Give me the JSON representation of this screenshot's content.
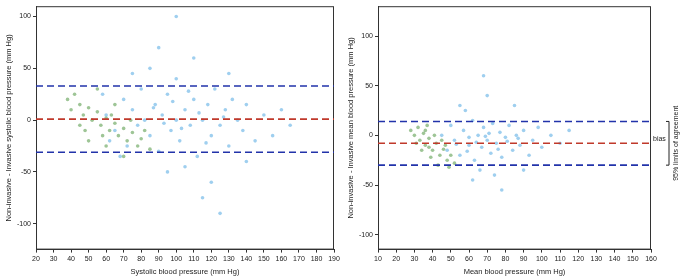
{
  "chart_data": [
    {
      "type": "scatter",
      "x_label": "Systolic blood pressure (mm Hg)",
      "y_label": "Non-invasive - Invasive systolic blood pressure (mm Hg)",
      "xlim": [
        20,
        190
      ],
      "xticks": [
        20,
        30,
        40,
        50,
        60,
        70,
        80,
        90,
        100,
        110,
        120,
        130,
        140,
        150,
        160,
        170,
        180,
        190
      ],
      "ylim": [
        -125,
        110
      ],
      "yticks": [
        -100,
        -50,
        0,
        50,
        100
      ],
      "grid": false,
      "marker": "circle",
      "series": [
        {
          "color": "#3fa0e0",
          "x": [
            60,
            65,
            70,
            72,
            75,
            78,
            80,
            82,
            85,
            88,
            90,
            92,
            95,
            97,
            100,
            100,
            102,
            105,
            108,
            110,
            112,
            115,
            118,
            120,
            122,
            125,
            128,
            130,
            132,
            135,
            138,
            140,
            145,
            150,
            155,
            160,
            165,
            85,
            95,
            110,
            120,
            75,
            130,
            105,
            90,
            115,
            140,
            100,
            125,
            68,
            58,
            62,
            98,
            103,
            113,
            93,
            87,
            117,
            127,
            107
          ],
          "values": [
            5,
            -10,
            20,
            -25,
            10,
            -5,
            30,
            0,
            -15,
            15,
            -30,
            5,
            25,
            -10,
            0,
            40,
            -20,
            10,
            -5,
            20,
            -35,
            0,
            15,
            -15,
            30,
            -5,
            10,
            -25,
            20,
            0,
            -10,
            15,
            -20,
            5,
            -15,
            10,
            -5,
            50,
            -50,
            60,
            -60,
            45,
            45,
            -45,
            70,
            -75,
            -40,
            100,
            -90,
            -35,
            25,
            -20,
            18,
            -8,
            7,
            -3,
            12,
            -22,
            3,
            28
          ]
        },
        {
          "color": "#3d8b2e",
          "x": [
            38,
            40,
            42,
            45,
            47,
            50,
            52,
            55,
            57,
            60,
            62,
            65,
            67,
            70,
            72,
            75,
            78,
            80,
            85,
            48,
            55,
            60,
            65,
            70,
            50,
            58,
            63,
            45,
            74,
            82
          ],
          "values": [
            20,
            10,
            25,
            15,
            5,
            12,
            0,
            8,
            -5,
            2,
            -10,
            -3,
            -15,
            -8,
            -20,
            -12,
            -25,
            -18,
            -28,
            -10,
            30,
            -25,
            15,
            -35,
            -20,
            -15,
            5,
            -5,
            0,
            -10
          ]
        }
      ],
      "reference_lines": [
        {
          "value": 33,
          "color": "#2233aa",
          "line_style": "dashed"
        },
        {
          "value": 1,
          "color": "#c0392b",
          "line_style": "dashed"
        },
        {
          "value": -31,
          "color": "#2233aa",
          "line_style": "dashed"
        }
      ]
    },
    {
      "type": "scatter",
      "x_label": "Mean blood pressure (mm Hg)",
      "y_label": "Non-invasive - Invasive mean blood pressure (mm Hg)",
      "xlim": [
        10,
        160
      ],
      "xticks": [
        10,
        20,
        30,
        40,
        50,
        60,
        70,
        80,
        90,
        100,
        110,
        120,
        130,
        140,
        150,
        160
      ],
      "ylim": [
        -115,
        130
      ],
      "yticks": [
        -100,
        -50,
        0,
        50,
        100
      ],
      "grid": false,
      "marker": "circle",
      "series": [
        {
          "color": "#3fa0e0",
          "x": [
            45,
            48,
            50,
            52,
            55,
            57,
            60,
            62,
            63,
            65,
            67,
            68,
            70,
            72,
            73,
            75,
            77,
            78,
            80,
            82,
            84,
            86,
            88,
            90,
            93,
            95,
            98,
            100,
            105,
            110,
            115,
            58,
            66,
            74,
            85,
            62,
            70,
            90,
            55,
            78,
            68,
            60,
            64,
            71,
            76,
            81,
            87,
            53,
            59,
            69
          ],
          "values": [
            0,
            -15,
            10,
            -5,
            -20,
            5,
            -10,
            15,
            -25,
            0,
            -12,
            8,
            -5,
            -18,
            12,
            -8,
            3,
            -22,
            -2,
            10,
            -15,
            0,
            -10,
            5,
            -20,
            -5,
            8,
            -12,
            0,
            -8,
            5,
            25,
            -35,
            -40,
            30,
            -45,
            40,
            -35,
            30,
            -55,
            60,
            -2,
            -7,
            2,
            -14,
            -6,
            -3,
            -9,
            -16,
            -1
          ]
        },
        {
          "color": "#3d8b2e",
          "x": [
            28,
            30,
            32,
            33,
            35,
            36,
            38,
            40,
            42,
            44,
            46,
            48,
            50,
            52,
            34,
            37,
            39,
            41,
            43,
            45,
            31,
            47,
            36,
            49,
            38
          ],
          "values": [
            5,
            0,
            8,
            -5,
            2,
            -10,
            -3,
            -15,
            -8,
            -20,
            -14,
            -25,
            -20,
            -28,
            -15,
            10,
            -22,
            0,
            -30,
            -5,
            -8,
            -10,
            5,
            -32,
            -12
          ]
        }
      ],
      "reference_lines": [
        {
          "value": 14,
          "color": "#2233aa",
          "line_style": "dashed"
        },
        {
          "value": -8,
          "color": "#c0392b",
          "line_style": "dashed",
          "label": "bias"
        },
        {
          "value": -30,
          "color": "#2233aa",
          "line_style": "dashed"
        }
      ],
      "range_label": {
        "text": "95% limits of agreement",
        "from": -30,
        "to": 14
      }
    }
  ]
}
